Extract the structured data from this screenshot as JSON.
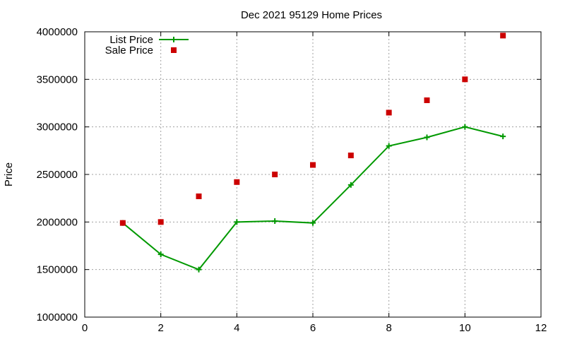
{
  "chart_data": {
    "type": "line",
    "title": "Dec 2021 95129 Home Prices",
    "xlabel": "",
    "ylabel": "Price",
    "xlim": [
      0,
      12
    ],
    "ylim": [
      1000000,
      4000000
    ],
    "x_ticks": [
      "0",
      "2",
      "4",
      "6",
      "8",
      "10",
      "12"
    ],
    "y_ticks": [
      "1000000",
      "1500000",
      "2000000",
      "2500000",
      "3000000",
      "3500000",
      "4000000"
    ],
    "grid": true,
    "legend_position": "top-left",
    "series": [
      {
        "name": "List Price",
        "style": "line+cross",
        "color": "#009900",
        "points": [
          {
            "x": 1,
            "y": 1990000
          },
          {
            "x": 2,
            "y": 1660000
          },
          {
            "x": 3,
            "y": 1500000
          },
          {
            "x": 4,
            "y": 2000000
          },
          {
            "x": 5,
            "y": 2010000
          },
          {
            "x": 6,
            "y": 1990000
          },
          {
            "x": 7,
            "y": 2390000
          },
          {
            "x": 8,
            "y": 2800000
          },
          {
            "x": 9,
            "y": 2890000
          },
          {
            "x": 10,
            "y": 3000000
          },
          {
            "x": 11,
            "y": 2900000
          }
        ]
      },
      {
        "name": "Sale Price",
        "style": "square-points",
        "color": "#cc0000",
        "points": [
          {
            "x": 1,
            "y": 1990000
          },
          {
            "x": 2,
            "y": 2000000
          },
          {
            "x": 3,
            "y": 2270000
          },
          {
            "x": 4,
            "y": 2420000
          },
          {
            "x": 5,
            "y": 2500000
          },
          {
            "x": 6,
            "y": 2600000
          },
          {
            "x": 7,
            "y": 2700000
          },
          {
            "x": 8,
            "y": 3150000
          },
          {
            "x": 9,
            "y": 3280000
          },
          {
            "x": 10,
            "y": 3500000
          },
          {
            "x": 11,
            "y": 3960000
          }
        ]
      }
    ]
  }
}
